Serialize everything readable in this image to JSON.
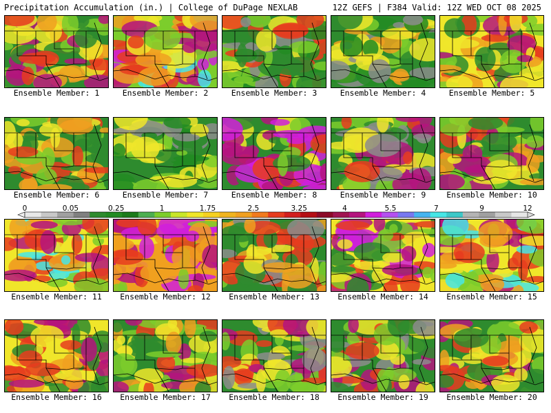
{
  "header": {
    "left": "Precipitation Accumulation (in.) | College of DuPage NEXLAB",
    "right": "12Z GEFS | F384 Valid: 12Z WED OCT 08 2025"
  },
  "members": [
    {
      "label": "Ensemble Member: 1",
      "palette": [
        "#2e8b2e",
        "#7ccd2c",
        "#f0e62a",
        "#f0a020",
        "#e63c1e",
        "#b4147e"
      ]
    },
    {
      "label": "Ensemble Member: 2",
      "palette": [
        "#7ccd2c",
        "#f0e62a",
        "#f0a020",
        "#e63c1e",
        "#b4147e",
        "#d01edc",
        "#46e6e6"
      ]
    },
    {
      "label": "Ensemble Member: 3",
      "palette": [
        "#2e8b2e",
        "#228b22",
        "#7ccd2c",
        "#8c8c8c",
        "#f0e62a",
        "#e63c1e"
      ]
    },
    {
      "label": "Ensemble Member: 4",
      "palette": [
        "#2e8b2e",
        "#228b22",
        "#7ccd2c",
        "#8c8c8c",
        "#f0e62a",
        "#f0a020"
      ]
    },
    {
      "label": "Ensemble Member: 5",
      "palette": [
        "#f0e62a",
        "#f0a020",
        "#e63c1e",
        "#7ccd2c",
        "#2e8b2e",
        "#b4147e"
      ]
    },
    {
      "label": "Ensemble Member: 6",
      "palette": [
        "#2e8b2e",
        "#7ccd2c",
        "#f0e62a",
        "#f0a020",
        "#e63c1e"
      ]
    },
    {
      "label": "Ensemble Member: 7",
      "palette": [
        "#2e8b2e",
        "#228b22",
        "#7ccd2c",
        "#8c8c8c",
        "#f0e62a"
      ]
    },
    {
      "label": "Ensemble Member: 8",
      "palette": [
        "#2e8b2e",
        "#7ccd2c",
        "#f0e62a",
        "#e63c1e",
        "#b4147e",
        "#d01edc"
      ]
    },
    {
      "label": "Ensemble Member: 9",
      "palette": [
        "#2e8b2e",
        "#7ccd2c",
        "#f0e62a",
        "#e63c1e",
        "#b4147e",
        "#8c8c8c"
      ]
    },
    {
      "label": "Ensemble Member: 10",
      "palette": [
        "#2e8b2e",
        "#7ccd2c",
        "#f0e62a",
        "#f0a020",
        "#e63c1e",
        "#b4147e"
      ]
    },
    {
      "label": "Ensemble Member: 11",
      "palette": [
        "#f0e62a",
        "#f0a020",
        "#e63c1e",
        "#b4147e",
        "#7ccd2c",
        "#46e6e6"
      ]
    },
    {
      "label": "Ensemble Member: 12",
      "palette": [
        "#f0a020",
        "#e63c1e",
        "#b4147e",
        "#f0e62a",
        "#d01edc",
        "#7ccd2c"
      ]
    },
    {
      "label": "Ensemble Member: 13",
      "palette": [
        "#2e8b2e",
        "#8c8c8c",
        "#7ccd2c",
        "#f0e62a",
        "#f0a020",
        "#e63c1e"
      ]
    },
    {
      "label": "Ensemble Member: 14",
      "palette": [
        "#f0e62a",
        "#7ccd2c",
        "#e63c1e",
        "#b4147e",
        "#d01edc",
        "#2e8b2e"
      ]
    },
    {
      "label": "Ensemble Member: 15",
      "palette": [
        "#f0e62a",
        "#f0a020",
        "#e63c1e",
        "#b4147e",
        "#7ccd2c",
        "#46e6e6"
      ]
    },
    {
      "label": "Ensemble Member: 16",
      "palette": [
        "#f0e62a",
        "#f0a020",
        "#e63c1e",
        "#b4147e",
        "#2e8b2e"
      ]
    },
    {
      "label": "Ensemble Member: 17",
      "palette": [
        "#2e8b2e",
        "#7ccd2c",
        "#f0e62a",
        "#f0a020",
        "#e63c1e",
        "#b4147e"
      ]
    },
    {
      "label": "Ensemble Member: 18",
      "palette": [
        "#2e8b2e",
        "#8c8c8c",
        "#7ccd2c",
        "#f0e62a",
        "#e63c1e",
        "#b4147e"
      ]
    },
    {
      "label": "Ensemble Member: 19",
      "palette": [
        "#2e8b2e",
        "#8c8c8c",
        "#7ccd2c",
        "#f0e62a",
        "#e63c1e",
        "#b4147e"
      ]
    },
    {
      "label": "Ensemble Member: 20",
      "palette": [
        "#2e8b2e",
        "#7ccd2c",
        "#f0e62a",
        "#f0a020",
        "#e63c1e",
        "#b4147e"
      ]
    }
  ],
  "colorbar": {
    "tick_labels": [
      "0",
      "0.05",
      "0.25",
      "1",
      "1.75",
      "2.5",
      "3.25",
      "4",
      "5.5",
      "7",
      "9",
      "12"
    ],
    "colors": [
      "#e8e8e8",
      "#c8c8c8",
      "#a0a0a0",
      "#808080",
      "#2e8b2e",
      "#228b22",
      "#1a7a1a",
      "#4caf50",
      "#7ccd2c",
      "#c8e62a",
      "#f0e62a",
      "#f5d020",
      "#f0b41e",
      "#f0a020",
      "#f07a1e",
      "#e63c1e",
      "#d21e1e",
      "#b40f14",
      "#8c0a28",
      "#a01450",
      "#b4147e",
      "#d01edc",
      "#b450f0",
      "#7878f0",
      "#46b4f0",
      "#46e6e6",
      "#3cc8c8",
      "#b4b4b4",
      "#a0a0a0",
      "#c8c8c8",
      "#e6e6e6"
    ]
  }
}
